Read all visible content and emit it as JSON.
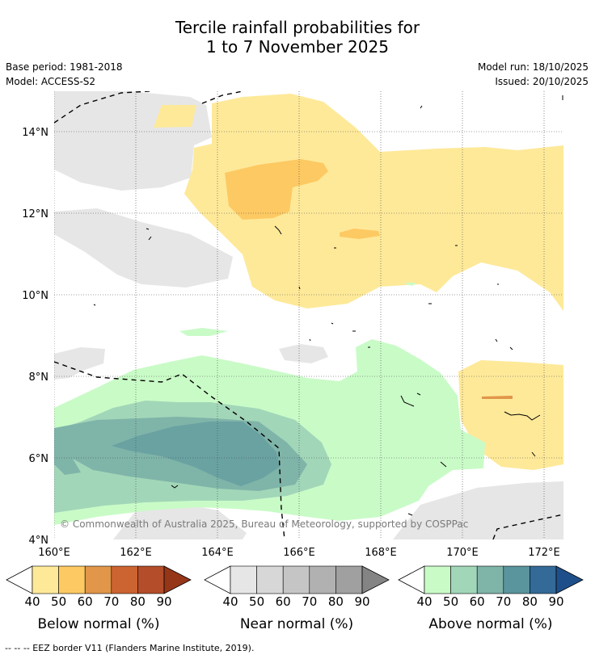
{
  "title": {
    "line1": "Tercile rainfall probabilities for",
    "line2": "1 to 7 November 2025"
  },
  "meta": {
    "base_period": "Base period: 1981-2018",
    "model": "Model: ACCESS-S2",
    "model_run": "Model run: 18/10/2025",
    "issued": "Issued: 20/10/2025"
  },
  "axes": {
    "lat_labels": [
      "14°N",
      "12°N",
      "10°N",
      "8°N",
      "6°N",
      "4°N"
    ],
    "lon_labels": [
      "160°E",
      "162°E",
      "164°E",
      "166°E",
      "168°E",
      "170°E",
      "172°E"
    ]
  },
  "copyright": "© Commonwealth of Australia 2025, Bureau of Meteorology, supported by COSPPac",
  "colorbars": {
    "below": {
      "label": "Below normal (%)",
      "ticks": [
        "40",
        "50",
        "60",
        "70",
        "80",
        "90"
      ],
      "colors": [
        "#fee999",
        "#fdc962",
        "#e1964a",
        "#cc6431",
        "#b44d2a",
        "#963618"
      ]
    },
    "near": {
      "label": "Near normal (%)",
      "ticks": [
        "40",
        "50",
        "60",
        "70",
        "80",
        "90"
      ],
      "colors": [
        "#e6e6e6",
        "#d7d7d7",
        "#c5c5c5",
        "#b1b1b1",
        "#a0a0a0",
        "#848484"
      ]
    },
    "above": {
      "label": "Above normal (%)",
      "ticks": [
        "40",
        "50",
        "60",
        "70",
        "80",
        "90"
      ],
      "colors": [
        "#c9fbc7",
        "#a2d6b8",
        "#7fb4a9",
        "#5a949c",
        "#336a98",
        "#1f4f8a"
      ]
    }
  },
  "footnote": "--  --  -- EEZ border V11 (Flanders Marine Institute, 2019)."
}
